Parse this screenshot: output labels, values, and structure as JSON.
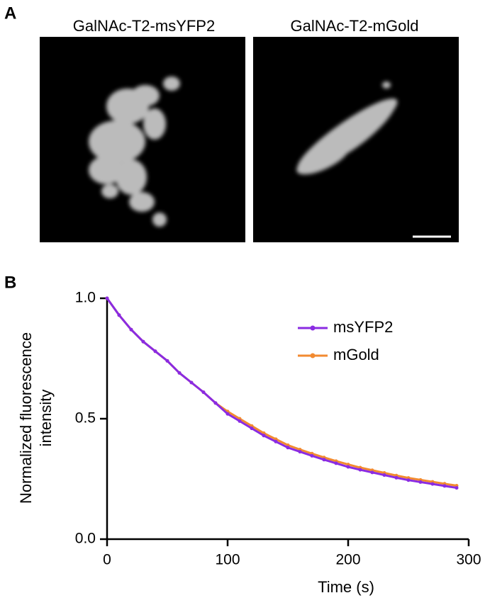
{
  "panels": {
    "a": "A",
    "b": "B"
  },
  "images": [
    {
      "title": "GalNAc-T2-msYFP2"
    },
    {
      "title": "GalNAc-T2-mGold"
    }
  ],
  "chart_data": {
    "type": "line",
    "xlabel": "Time (s)",
    "ylabel": [
      "Normalized fluorescence",
      "intensity"
    ],
    "x": [
      0,
      10,
      20,
      30,
      40,
      50,
      60,
      70,
      80,
      90,
      100,
      110,
      120,
      130,
      140,
      150,
      160,
      170,
      180,
      190,
      200,
      210,
      220,
      230,
      240,
      250,
      260,
      270,
      280,
      290
    ],
    "series": [
      {
        "name": "msYFP2",
        "color": "#8a2be2",
        "values": [
          1.0,
          0.93,
          0.87,
          0.82,
          0.78,
          0.74,
          0.69,
          0.65,
          0.61,
          0.565,
          0.52,
          0.49,
          0.46,
          0.43,
          0.405,
          0.38,
          0.363,
          0.346,
          0.33,
          0.315,
          0.3,
          0.288,
          0.277,
          0.266,
          0.255,
          0.245,
          0.237,
          0.229,
          0.221,
          0.213
        ]
      },
      {
        "name": "mGold",
        "color": "#f28a30",
        "values": [
          1.0,
          0.93,
          0.87,
          0.82,
          0.78,
          0.74,
          0.69,
          0.65,
          0.61,
          0.565,
          0.53,
          0.5,
          0.47,
          0.44,
          0.415,
          0.39,
          0.372,
          0.355,
          0.339,
          0.324,
          0.31,
          0.297,
          0.286,
          0.275,
          0.264,
          0.254,
          0.246,
          0.238,
          0.23,
          0.222
        ]
      }
    ],
    "xlim": [
      0,
      300
    ],
    "xticks": [
      0,
      100,
      200,
      300
    ],
    "ylim": [
      0,
      1
    ],
    "yticks": [
      {
        "value": 0,
        "label": "0.0"
      },
      {
        "value": 0.5,
        "label": "0.5"
      },
      {
        "value": 1,
        "label": "1.0"
      }
    ]
  }
}
